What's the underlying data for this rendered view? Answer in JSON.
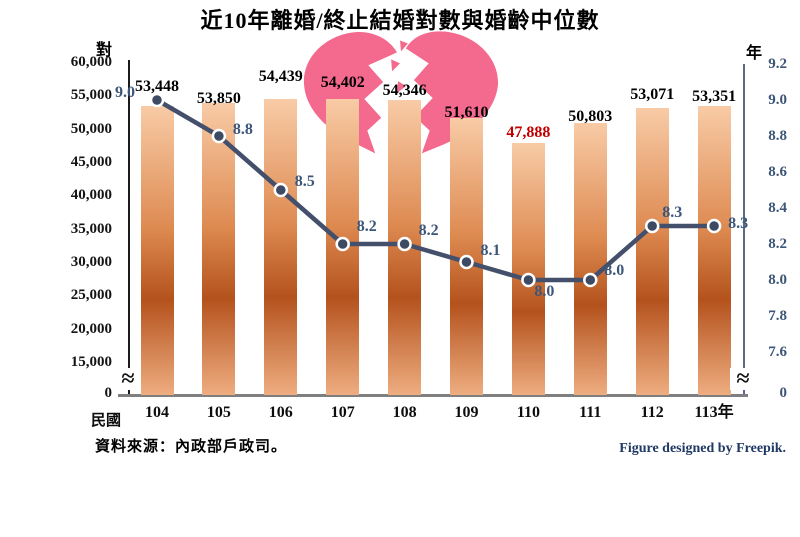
{
  "title": "近10年離婚/終止結婚對數與婚齡中位數",
  "axes": {
    "left": {
      "unit": "對",
      "tick_labels": [
        "60,000",
        "55,000",
        "50,000",
        "45,000",
        "40,000",
        "35,000",
        "30,000",
        "25,000",
        "20,000",
        "15,000"
      ],
      "zero_label": "0",
      "break_symbol": "≈"
    },
    "right": {
      "unit": "年",
      "tick_labels": [
        "9.2",
        "9.0",
        "8.8",
        "8.6",
        "8.4",
        "8.2",
        "8.0",
        "7.8",
        "7.6"
      ],
      "zero_label": "0",
      "break_symbol": "≈"
    },
    "x": {
      "prefix_label": "民國",
      "tick_labels": [
        "104",
        "105",
        "106",
        "107",
        "108",
        "109",
        "110",
        "111",
        "112",
        "113年"
      ]
    }
  },
  "footer": {
    "source": "資料來源：內政部戶政司。",
    "credit": "Figure designed by Freepik."
  },
  "chart_data": {
    "type": "combo",
    "categories": [
      "104",
      "105",
      "106",
      "107",
      "108",
      "109",
      "110",
      "111",
      "112",
      "113"
    ],
    "series": [
      {
        "name": "離婚/終止結婚對數",
        "type": "bar",
        "axis": "left",
        "values": [
          53448,
          53850,
          54439,
          54402,
          54346,
          51610,
          47888,
          50803,
          53071,
          53351
        ],
        "value_labels": [
          "53,448",
          "53,850",
          "54,439",
          "54,402",
          "54,346",
          "51,610",
          "47,888",
          "50,803",
          "53,071",
          "53,351"
        ],
        "highlight_index": 6
      },
      {
        "name": "婚齡中位數",
        "type": "line",
        "axis": "right",
        "values": [
          9.0,
          8.8,
          8.5,
          8.2,
          8.2,
          8.1,
          8.0,
          8.0,
          8.3,
          8.3
        ],
        "value_labels": [
          "9.0",
          "8.8",
          "8.5",
          "8.2",
          "8.2",
          "8.1",
          "8.0",
          "8.0",
          "8.3",
          "8.3"
        ]
      }
    ],
    "left_axis_visible_range": [
      15000,
      60000
    ],
    "right_axis_visible_range": [
      7.6,
      9.2
    ],
    "axis_break": true,
    "legend_position": "none"
  },
  "colors": {
    "bar_gradient_top": "#F8CBA6",
    "bar_gradient_mid": "#DE8B52",
    "bar_gradient_dark": "#B4521D",
    "bar_gradient_bottom": "#EEAD80",
    "line": "#44506B",
    "marker_fill": "#3D4A63",
    "marker_ring": "#FFFFFF",
    "line_label": "#3C5578",
    "right_axis_text": "#3C5578",
    "bar_label": "#000000",
    "highlight_label": "#C00000",
    "heart_pink": "#F4698E",
    "credit_text": "#1F3864",
    "axis_bottom": "#7F7F7F",
    "axis_left": "#1A1A1A",
    "axis_right": "#5A6A85"
  }
}
